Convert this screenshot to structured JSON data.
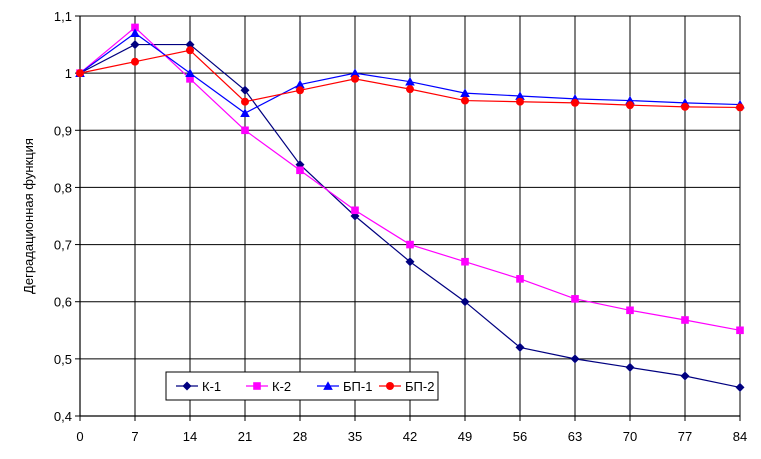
{
  "chart_data": {
    "type": "line",
    "ylabel": "Деградационная функция",
    "xlabel": "",
    "x": [
      0,
      7,
      14,
      21,
      28,
      35,
      42,
      49,
      56,
      63,
      70,
      77,
      84
    ],
    "x_tick_labels": [
      "0",
      "7",
      "14",
      "21",
      "28",
      "35",
      "42",
      "49",
      "56",
      "63",
      "70",
      "77",
      "84"
    ],
    "xlim": [
      0,
      84
    ],
    "ylim": [
      0.4,
      1.1
    ],
    "y_ticks": [
      0.4,
      0.5,
      0.6,
      0.7,
      0.8,
      0.9,
      1.0,
      1.1
    ],
    "y_tick_labels": [
      "0,4",
      "0,5",
      "0,6",
      "0,7",
      "0,8",
      "0,9",
      "1",
      "1,1"
    ],
    "grid": true,
    "legend_position": "bottom-left",
    "series": [
      {
        "name": "К-1",
        "color": "#000080",
        "marker": "diamond",
        "values": [
          1.0,
          1.05,
          1.05,
          0.97,
          0.84,
          0.75,
          0.67,
          0.6,
          0.52,
          0.5,
          0.485,
          0.47,
          0.45
        ]
      },
      {
        "name": "К-2",
        "color": "#ff00ff",
        "marker": "square",
        "values": [
          1.0,
          1.08,
          0.99,
          0.9,
          0.83,
          0.76,
          0.7,
          0.67,
          0.64,
          0.605,
          0.585,
          0.568,
          0.55
        ]
      },
      {
        "name": "БП-1",
        "color": "#0000ff",
        "marker": "triangle",
        "values": [
          1.0,
          1.07,
          1.0,
          0.93,
          0.98,
          1.0,
          0.985,
          0.965,
          0.96,
          0.955,
          0.952,
          0.948,
          0.945
        ]
      },
      {
        "name": "БП-2",
        "color": "#ff0000",
        "marker": "circle",
        "values": [
          1.0,
          1.02,
          1.04,
          0.95,
          0.97,
          0.99,
          0.972,
          0.952,
          0.95,
          0.948,
          0.944,
          0.941,
          0.94
        ]
      }
    ]
  }
}
